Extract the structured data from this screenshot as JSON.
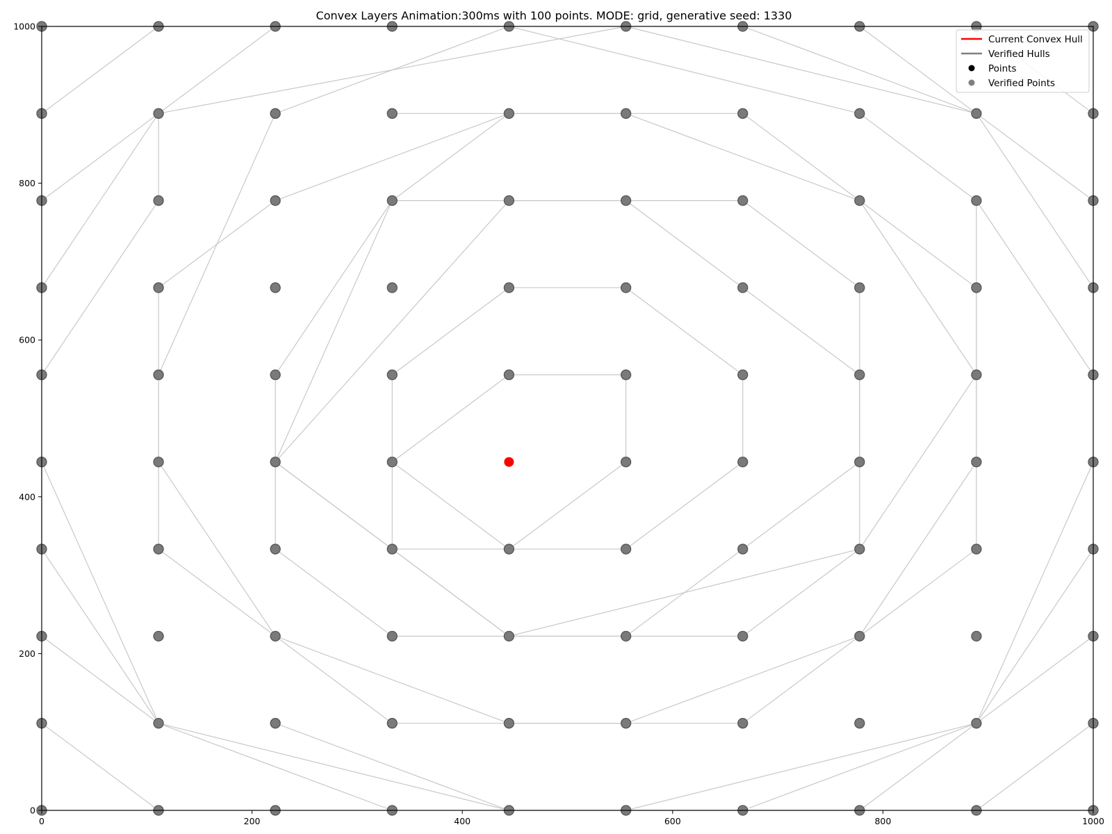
{
  "chart_data": {
    "type": "scatter",
    "title": "Convex Layers Animation:300ms with 100 points. MODE: grid, generative seed: 1330",
    "xlabel": "",
    "ylabel": "",
    "xlim": [
      0,
      1000
    ],
    "ylim": [
      0,
      1000
    ],
    "grid": false,
    "x_ticks": [
      "0",
      "200",
      "400",
      "600",
      "800",
      "1000"
    ],
    "y_ticks": [
      "0",
      "200",
      "400",
      "600",
      "800",
      "1000"
    ],
    "legend": {
      "position": "top-right",
      "entries": [
        {
          "label": "Current Convex Hull",
          "kind": "line",
          "color": "#ff0000"
        },
        {
          "label": "Verified Hulls",
          "kind": "line",
          "color": "#808080"
        },
        {
          "label": "Points",
          "kind": "marker",
          "color": "#000000"
        },
        {
          "label": "Verified Points",
          "kind": "marker",
          "color": "#808080"
        }
      ]
    },
    "colors": {
      "verified_point": "#7a7a7a",
      "verified_point_edge": "#555555",
      "hull_line": "#c8c8c8",
      "current_point": "#ff0000"
    },
    "grid_coordinates": [
      0,
      111.1,
      222.2,
      333.3,
      444.4,
      555.6,
      666.7,
      777.8,
      888.9,
      1000
    ],
    "current_point": {
      "x": 444.4,
      "y": 444.4
    },
    "hull_segments": [
      [
        [
          444.4,
          555.6
        ],
        [
          555.6,
          555.6
        ]
      ],
      [
        [
          555.6,
          555.6
        ],
        [
          555.6,
          444.4
        ]
      ],
      [
        [
          555.6,
          444.4
        ],
        [
          444.4,
          333.3
        ]
      ],
      [
        [
          444.4,
          333.3
        ],
        [
          333.3,
          444.4
        ]
      ],
      [
        [
          333.3,
          444.4
        ],
        [
          444.4,
          555.6
        ]
      ],
      [
        [
          444.4,
          666.7
        ],
        [
          555.6,
          666.7
        ]
      ],
      [
        [
          555.6,
          666.7
        ],
        [
          666.7,
          555.6
        ]
      ],
      [
        [
          666.7,
          555.6
        ],
        [
          666.7,
          444.4
        ]
      ],
      [
        [
          666.7,
          444.4
        ],
        [
          555.6,
          333.3
        ]
      ],
      [
        [
          555.6,
          333.3
        ],
        [
          333.3,
          333.3
        ]
      ],
      [
        [
          333.3,
          333.3
        ],
        [
          333.3,
          555.6
        ]
      ],
      [
        [
          333.3,
          555.6
        ],
        [
          444.4,
          666.7
        ]
      ],
      [
        [
          333.3,
          777.8
        ],
        [
          666.7,
          777.8
        ]
      ],
      [
        [
          666.7,
          777.8
        ],
        [
          777.8,
          666.7
        ]
      ],
      [
        [
          777.8,
          666.7
        ],
        [
          777.8,
          333.3
        ]
      ],
      [
        [
          777.8,
          333.3
        ],
        [
          666.7,
          222.2
        ]
      ],
      [
        [
          666.7,
          222.2
        ],
        [
          333.3,
          222.2
        ]
      ],
      [
        [
          333.3,
          222.2
        ],
        [
          222.2,
          333.3
        ]
      ],
      [
        [
          222.2,
          333.3
        ],
        [
          222.2,
          555.6
        ]
      ],
      [
        [
          222.2,
          555.6
        ],
        [
          333.3,
          777.8
        ]
      ],
      [
        [
          333.3,
          888.9
        ],
        [
          666.7,
          888.9
        ]
      ],
      [
        [
          666.7,
          888.9
        ],
        [
          777.8,
          777.8
        ]
      ],
      [
        [
          777.8,
          777.8
        ],
        [
          888.9,
          555.6
        ]
      ],
      [
        [
          888.9,
          555.6
        ],
        [
          777.8,
          333.3
        ]
      ],
      [
        [
          777.8,
          333.3
        ],
        [
          444.4,
          222.2
        ]
      ],
      [
        [
          444.4,
          222.2
        ],
        [
          333.3,
          333.3
        ]
      ],
      [
        [
          333.3,
          333.3
        ],
        [
          222.2,
          444.4
        ]
      ],
      [
        [
          222.2,
          444.4
        ],
        [
          333.3,
          777.8
        ]
      ],
      [
        [
          333.3,
          777.8
        ],
        [
          444.4,
          888.9
        ]
      ],
      [
        [
          444.4,
          777.8
        ],
        [
          555.6,
          777.8
        ]
      ],
      [
        [
          555.6,
          777.8
        ],
        [
          777.8,
          555.6
        ]
      ],
      [
        [
          777.8,
          555.6
        ],
        [
          777.8,
          444.4
        ]
      ],
      [
        [
          777.8,
          444.4
        ],
        [
          555.6,
          222.2
        ]
      ],
      [
        [
          555.6,
          222.2
        ],
        [
          444.4,
          222.2
        ]
      ],
      [
        [
          444.4,
          222.2
        ],
        [
          333.3,
          333.3
        ]
      ],
      [
        [
          333.3,
          333.3
        ],
        [
          222.2,
          444.4
        ]
      ],
      [
        [
          222.2,
          444.4
        ],
        [
          444.4,
          777.8
        ]
      ],
      [
        [
          444.4,
          888.9
        ],
        [
          555.6,
          888.9
        ]
      ],
      [
        [
          555.6,
          888.9
        ],
        [
          777.8,
          777.8
        ]
      ],
      [
        [
          777.8,
          777.8
        ],
        [
          888.9,
          666.7
        ]
      ],
      [
        [
          888.9,
          666.7
        ],
        [
          888.9,
          333.3
        ]
      ],
      [
        [
          888.9,
          333.3
        ],
        [
          666.7,
          111.1
        ]
      ],
      [
        [
          666.7,
          111.1
        ],
        [
          333.3,
          111.1
        ]
      ],
      [
        [
          333.3,
          111.1
        ],
        [
          111.1,
          333.3
        ]
      ],
      [
        [
          111.1,
          333.3
        ],
        [
          111.1,
          666.7
        ]
      ],
      [
        [
          111.1,
          666.7
        ],
        [
          222.2,
          777.8
        ]
      ],
      [
        [
          222.2,
          777.8
        ],
        [
          444.4,
          888.9
        ]
      ],
      [
        [
          222.2,
          888.9
        ],
        [
          444.4,
          1000
        ]
      ],
      [
        [
          444.4,
          1000
        ],
        [
          777.8,
          888.9
        ]
      ],
      [
        [
          777.8,
          888.9
        ],
        [
          888.9,
          777.8
        ]
      ],
      [
        [
          888.9,
          777.8
        ],
        [
          888.9,
          444.4
        ]
      ],
      [
        [
          888.9,
          444.4
        ],
        [
          777.8,
          222.2
        ]
      ],
      [
        [
          777.8,
          222.2
        ],
        [
          555.6,
          111.1
        ]
      ],
      [
        [
          555.6,
          111.1
        ],
        [
          444.4,
          111.1
        ]
      ],
      [
        [
          444.4,
          111.1
        ],
        [
          222.2,
          222.2
        ]
      ],
      [
        [
          222.2,
          222.2
        ],
        [
          111.1,
          444.4
        ]
      ],
      [
        [
          111.1,
          444.4
        ],
        [
          111.1,
          555.6
        ]
      ],
      [
        [
          111.1,
          555.6
        ],
        [
          222.2,
          888.9
        ]
      ],
      [
        [
          111.1,
          777.8
        ],
        [
          111.1,
          888.9
        ]
      ],
      [
        [
          111.1,
          888.9
        ],
        [
          222.2,
          1000
        ]
      ],
      [
        [
          111.1,
          777.8
        ],
        [
          0,
          555.6
        ]
      ],
      [
        [
          111.1,
          888.9
        ],
        [
          555.6,
          1000
        ]
      ],
      [
        [
          555.6,
          1000
        ],
        [
          888.9,
          888.9
        ]
      ],
      [
        [
          888.9,
          888.9
        ],
        [
          1000,
          777.8
        ]
      ],
      [
        [
          1000,
          777.8
        ],
        [
          1000,
          444.4
        ]
      ],
      [
        [
          1000,
          444.4
        ],
        [
          888.9,
          111.1
        ]
      ],
      [
        [
          888.9,
          111.1
        ],
        [
          777.8,
          0
        ]
      ],
      [
        [
          777.8,
          0
        ],
        [
          444.4,
          0
        ]
      ],
      [
        [
          444.4,
          0
        ],
        [
          111.1,
          111.1
        ]
      ],
      [
        [
          111.1,
          111.1
        ],
        [
          0,
          333.3
        ]
      ],
      [
        [
          0,
          333.3
        ],
        [
          0,
          444.4
        ]
      ],
      [
        [
          0,
          444.4
        ],
        [
          111.1,
          111.1
        ]
      ],
      [
        [
          0,
          888.9
        ],
        [
          111.1,
          1000
        ]
      ],
      [
        [
          111.1,
          888.9
        ],
        [
          0,
          777.8
        ]
      ],
      [
        [
          111.1,
          888.9
        ],
        [
          0,
          666.7
        ]
      ],
      [
        [
          666.7,
          1000
        ],
        [
          888.9,
          888.9
        ]
      ],
      [
        [
          777.8,
          1000
        ],
        [
          888.9,
          888.9
        ]
      ],
      [
        [
          888.9,
          888.9
        ],
        [
          1000,
          666.7
        ]
      ],
      [
        [
          888.9,
          1000
        ],
        [
          1000,
          888.9
        ]
      ],
      [
        [
          1000,
          555.6
        ],
        [
          888.9,
          777.8
        ]
      ],
      [
        [
          1000,
          333.3
        ],
        [
          888.9,
          111.1
        ]
      ],
      [
        [
          1000,
          222.2
        ],
        [
          888.9,
          111.1
        ]
      ],
      [
        [
          1000,
          111.1
        ],
        [
          888.9,
          0
        ]
      ],
      [
        [
          888.9,
          111.1
        ],
        [
          666.7,
          0
        ]
      ],
      [
        [
          888.9,
          111.1
        ],
        [
          555.6,
          0
        ]
      ],
      [
        [
          0,
          222.2
        ],
        [
          111.1,
          111.1
        ]
      ],
      [
        [
          0,
          111.1
        ],
        [
          111.1,
          0
        ]
      ],
      [
        [
          111.1,
          111.1
        ],
        [
          333.3,
          0
        ]
      ],
      [
        [
          222.2,
          111.1
        ],
        [
          444.4,
          0
        ]
      ]
    ]
  }
}
